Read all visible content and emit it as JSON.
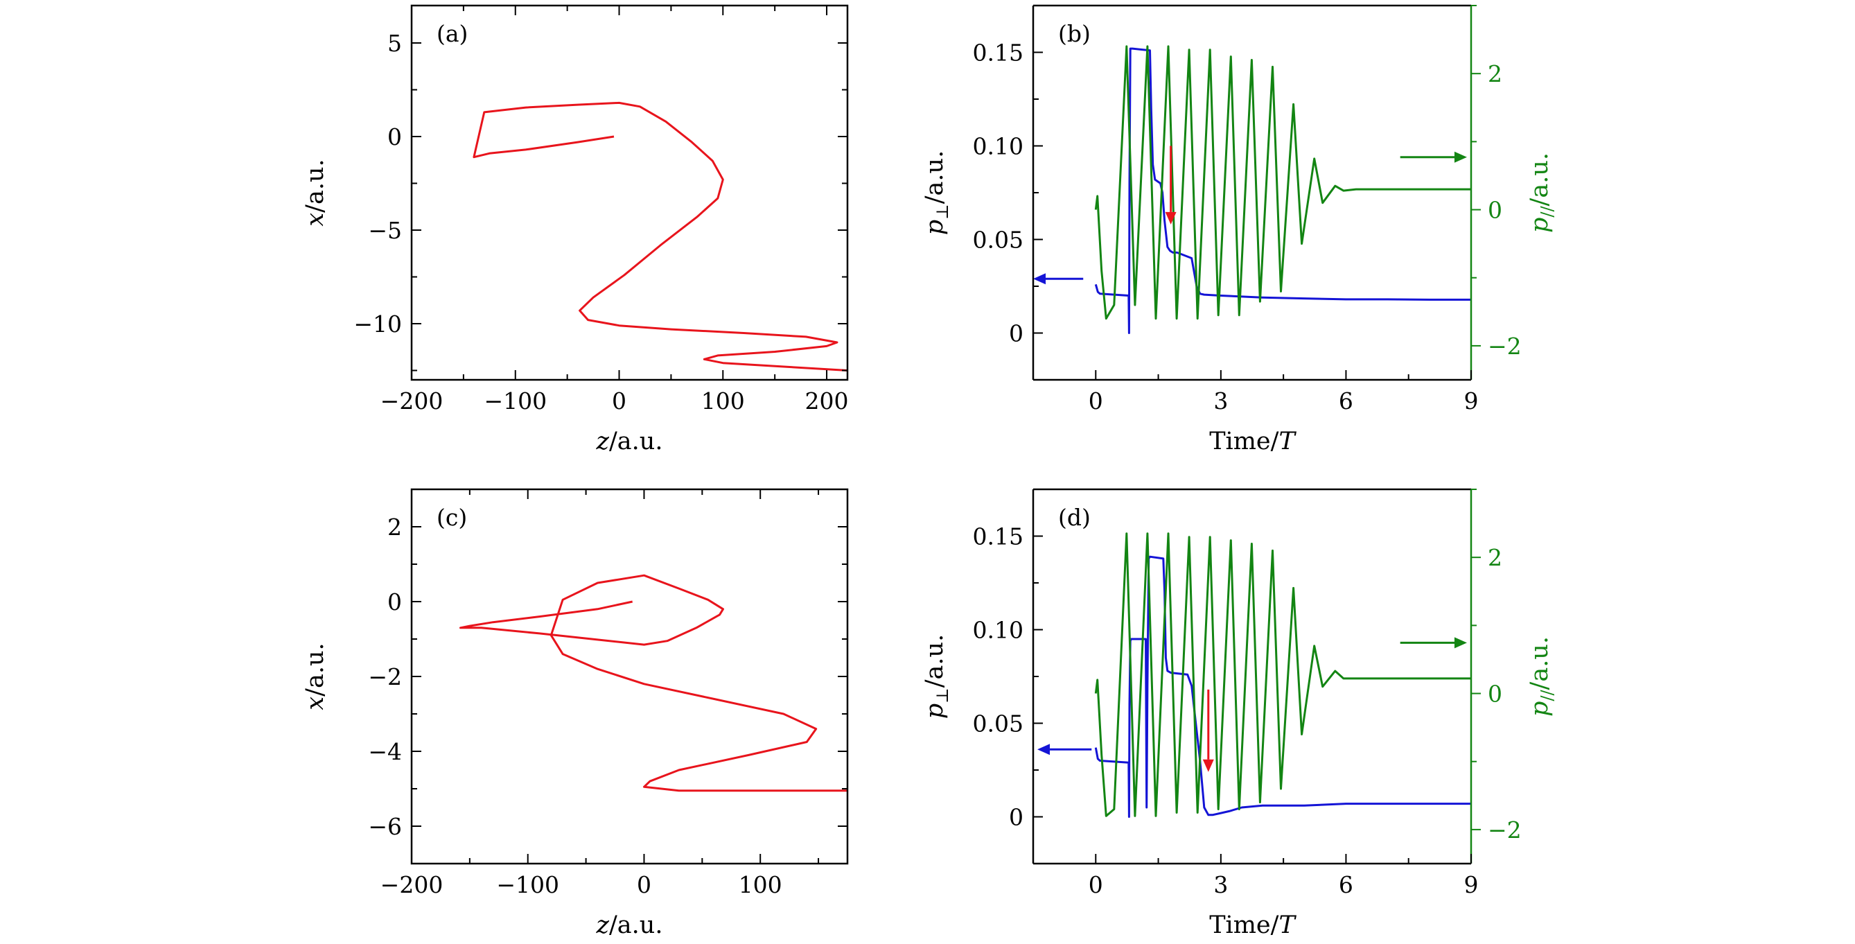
{
  "colors": {
    "axis": "#000000",
    "red": "#e8141c",
    "blue": "#1414d6",
    "green": "#138513"
  },
  "chart_data": [
    {
      "panel": "(a)",
      "type": "line",
      "xlabel_var": "z",
      "xlabel_unit": "/a.u.",
      "ylabel_var": "x",
      "ylabel_unit": "/a.u.",
      "xlim": [
        -200,
        220
      ],
      "ylim": [
        -13,
        7
      ],
      "xticks": [
        -200,
        -100,
        0,
        100,
        200
      ],
      "xtick_labels": [
        "−200",
        "−100",
        "0",
        "100",
        "200"
      ],
      "yticks": [
        5,
        0,
        -5,
        -10
      ],
      "ytick_labels": [
        "5",
        "0",
        "−5",
        "−10"
      ],
      "series": [
        {
          "color": "#e8141c",
          "z": [
            -5,
            -40,
            -90,
            -125,
            -140,
            -130,
            -90,
            -40,
            0,
            20,
            45,
            70,
            90,
            100,
            95,
            75,
            40,
            5,
            -25,
            -38,
            -30,
            0,
            50,
            120,
            180,
            210,
            200,
            150,
            95,
            82,
            100,
            160,
            220
          ],
          "x": [
            0,
            -0.3,
            -0.7,
            -0.9,
            -1.1,
            1.3,
            1.55,
            1.7,
            1.8,
            1.6,
            0.8,
            -0.3,
            -1.3,
            -2.3,
            -3.3,
            -4.3,
            -5.8,
            -7.4,
            -8.6,
            -9.3,
            -9.8,
            -10.1,
            -10.3,
            -10.5,
            -10.7,
            -11.0,
            -11.2,
            -11.5,
            -11.7,
            -11.9,
            -12.1,
            -12.3,
            -12.5
          ]
        }
      ]
    },
    {
      "panel": "(b)",
      "type": "line",
      "xlabel_main": "Time/",
      "xlabel_var": "T",
      "ylabel_left_var": "p",
      "ylabel_left_sub": "⊥",
      "ylabel_left_unit": "/a.u.",
      "ylabel_right_var": "p",
      "ylabel_right_sub": "//",
      "ylabel_right_unit": "/a.u.",
      "xlim": [
        -1.5,
        9
      ],
      "ylim_left": [
        -0.025,
        0.175
      ],
      "ylim_right": [
        -2.5,
        3
      ],
      "xticks": [
        0,
        3,
        6,
        9
      ],
      "xtick_labels": [
        "0",
        "3",
        "6",
        "9"
      ],
      "yticks_left": [
        0,
        0.05,
        0.1,
        0.15
      ],
      "ytick_left_labels": [
        "0",
        "0.05",
        "0.10",
        "0.15"
      ],
      "yticks_right": [
        2,
        0,
        -2
      ],
      "ytick_right_labels": [
        "2",
        "0",
        "−2"
      ],
      "arrows": [
        {
          "color": "#1414d6",
          "from": [
            -0.3,
            0.029
          ],
          "to": [
            -1.5,
            0.029
          ]
        },
        {
          "color": "#138513",
          "from": [
            7.3,
            0.094
          ],
          "to": [
            8.9,
            0.094
          ]
        },
        {
          "color": "#e8141c",
          "from": [
            1.8,
            0.1
          ],
          "to": [
            1.8,
            0.058
          ]
        }
      ],
      "series": [
        {
          "axis": "left",
          "color": "#1414d6",
          "t": [
            0,
            0.05,
            0.1,
            0.79,
            0.8,
            0.81,
            0.83,
            0.85,
            0.88,
            1.3,
            1.33,
            1.37,
            1.42,
            1.55,
            1.6,
            1.65,
            1.72,
            1.78,
            1.85,
            1.95,
            2.3,
            2.42,
            2.5,
            2.6,
            3.0,
            4.0,
            5.0,
            6.0,
            7.0,
            8.0,
            9.0
          ],
          "v": [
            0.026,
            0.022,
            0.021,
            0.02,
            0.0,
            0.08,
            0.152,
            0.152,
            0.152,
            0.151,
            0.12,
            0.09,
            0.082,
            0.08,
            0.075,
            0.06,
            0.046,
            0.044,
            0.043,
            0.043,
            0.04,
            0.025,
            0.021,
            0.0205,
            0.02,
            0.019,
            0.0185,
            0.018,
            0.018,
            0.0178,
            0.0178
          ]
        },
        {
          "axis": "right",
          "color": "#138513",
          "t": [
            0,
            0.04,
            0.14,
            0.25,
            0.44,
            0.74,
            0.94,
            1.24,
            1.44,
            1.74,
            1.94,
            2.24,
            2.44,
            2.74,
            2.94,
            3.24,
            3.44,
            3.74,
            3.94,
            4.24,
            4.44,
            4.74,
            4.94,
            5.24,
            5.44,
            5.74,
            5.94,
            6.24,
            6.44,
            6.74,
            6.94,
            7.15,
            7.4,
            7.6,
            8.0,
            9.0
          ],
          "v": [
            0,
            0.2,
            -0.9,
            -1.6,
            -1.4,
            2.4,
            -1.4,
            2.4,
            -1.6,
            2.4,
            -1.6,
            2.35,
            -1.6,
            2.35,
            -1.55,
            2.25,
            -1.55,
            2.2,
            -1.35,
            2.1,
            -1.2,
            1.55,
            -0.5,
            0.75,
            0.1,
            0.35,
            0.28,
            0.3,
            0.3,
            0.3,
            0.3,
            0.3,
            0.3,
            0.3,
            0.3,
            0.3
          ]
        }
      ]
    },
    {
      "panel": "(c)",
      "type": "line",
      "xlabel_var": "z",
      "xlabel_unit": "/a.u.",
      "ylabel_var": "x",
      "ylabel_unit": "/a.u.",
      "xlim": [
        -200,
        175
      ],
      "ylim": [
        -7,
        3
      ],
      "xticks": [
        -200,
        -100,
        0,
        100
      ],
      "xtick_labels": [
        "−200",
        "−100",
        "0",
        "100"
      ],
      "yticks": [
        2,
        0,
        -2,
        -4,
        -6
      ],
      "ytick_labels": [
        "2",
        "0",
        "−2",
        "−4",
        "−6"
      ],
      "series": [
        {
          "color": "#e8141c",
          "z": [
            -10,
            -40,
            -90,
            -130,
            -150,
            -158,
            -140,
            -90,
            -45,
            0,
            20,
            45,
            65,
            68,
            55,
            30,
            0,
            -40,
            -70,
            -80,
            -70,
            -40,
            0,
            60,
            120,
            148,
            140,
            90,
            30,
            5,
            0,
            30,
            100,
            175
          ],
          "x": [
            0,
            -0.2,
            -0.4,
            -0.55,
            -0.65,
            -0.7,
            -0.7,
            -0.85,
            -1.0,
            -1.15,
            -1.05,
            -0.7,
            -0.35,
            -0.2,
            0.05,
            0.35,
            0.7,
            0.5,
            0.05,
            -0.9,
            -1.4,
            -1.8,
            -2.2,
            -2.6,
            -3.0,
            -3.4,
            -3.75,
            -4.1,
            -4.5,
            -4.8,
            -4.95,
            -5.05,
            -5.05,
            -5.05
          ]
        }
      ]
    },
    {
      "panel": "(d)",
      "type": "line",
      "xlabel_main": "Time/",
      "xlabel_var": "T",
      "ylabel_left_var": "p",
      "ylabel_left_sub": "⊥",
      "ylabel_left_unit": "/a.u.",
      "ylabel_right_var": "p",
      "ylabel_right_sub": "//",
      "ylabel_right_unit": "/a.u.",
      "xlim": [
        -1.5,
        9
      ],
      "ylim_left": [
        -0.025,
        0.175
      ],
      "ylim_right": [
        -2.5,
        3
      ],
      "xticks": [
        0,
        3,
        6,
        9
      ],
      "xtick_labels": [
        "0",
        "3",
        "6",
        "9"
      ],
      "yticks_left": [
        0,
        0.05,
        0.1,
        0.15
      ],
      "ytick_left_labels": [
        "0",
        "0.05",
        "0.10",
        "0.15"
      ],
      "yticks_right": [
        2,
        0,
        -2
      ],
      "ytick_right_labels": [
        "2",
        "0",
        "−2"
      ],
      "arrows": [
        {
          "color": "#1414d6",
          "from": [
            -0.1,
            0.036
          ],
          "to": [
            -1.4,
            0.036
          ]
        },
        {
          "color": "#138513",
          "from": [
            7.3,
            0.093
          ],
          "to": [
            8.9,
            0.093
          ]
        },
        {
          "color": "#e8141c",
          "from": [
            2.7,
            0.068
          ],
          "to": [
            2.7,
            0.024
          ]
        }
      ],
      "series": [
        {
          "axis": "left",
          "color": "#1414d6",
          "t": [
            0,
            0.05,
            0.1,
            0.79,
            0.8,
            0.81,
            0.83,
            0.85,
            1.2,
            1.22,
            1.24,
            1.27,
            1.3,
            1.62,
            1.65,
            1.68,
            1.72,
            1.8,
            2.2,
            2.3,
            2.4,
            2.5,
            2.6,
            2.7,
            2.8,
            3.0,
            3.2,
            3.5,
            4.0,
            5.0,
            6.0,
            7.0,
            8.0,
            9.0
          ],
          "v": [
            0.037,
            0.031,
            0.03,
            0.029,
            0.0,
            0.06,
            0.094,
            0.095,
            0.095,
            0.005,
            0.07,
            0.138,
            0.139,
            0.138,
            0.12,
            0.085,
            0.078,
            0.077,
            0.076,
            0.07,
            0.05,
            0.03,
            0.005,
            0.001,
            0.001,
            0.002,
            0.003,
            0.005,
            0.006,
            0.006,
            0.007,
            0.007,
            0.007,
            0.007
          ]
        },
        {
          "axis": "right",
          "color": "#138513",
          "t": [
            0,
            0.04,
            0.14,
            0.25,
            0.44,
            0.74,
            0.94,
            1.24,
            1.44,
            1.74,
            1.94,
            2.24,
            2.44,
            2.74,
            2.94,
            3.24,
            3.44,
            3.74,
            3.94,
            4.24,
            4.44,
            4.74,
            4.94,
            5.24,
            5.44,
            5.74,
            5.94,
            6.24,
            6.44,
            6.74,
            6.94,
            7.15,
            7.4,
            7.6,
            8.0,
            9.0
          ],
          "v": [
            0,
            0.2,
            -0.9,
            -1.8,
            -1.7,
            2.35,
            -1.8,
            2.35,
            -1.8,
            2.35,
            -1.75,
            2.3,
            -1.75,
            2.3,
            -1.7,
            2.25,
            -1.7,
            2.2,
            -1.6,
            2.1,
            -1.4,
            1.55,
            -0.6,
            0.7,
            0.1,
            0.33,
            0.22,
            0.22,
            0.22,
            0.22,
            0.22,
            0.22,
            0.22,
            0.22,
            0.22,
            0.22
          ]
        }
      ]
    }
  ]
}
